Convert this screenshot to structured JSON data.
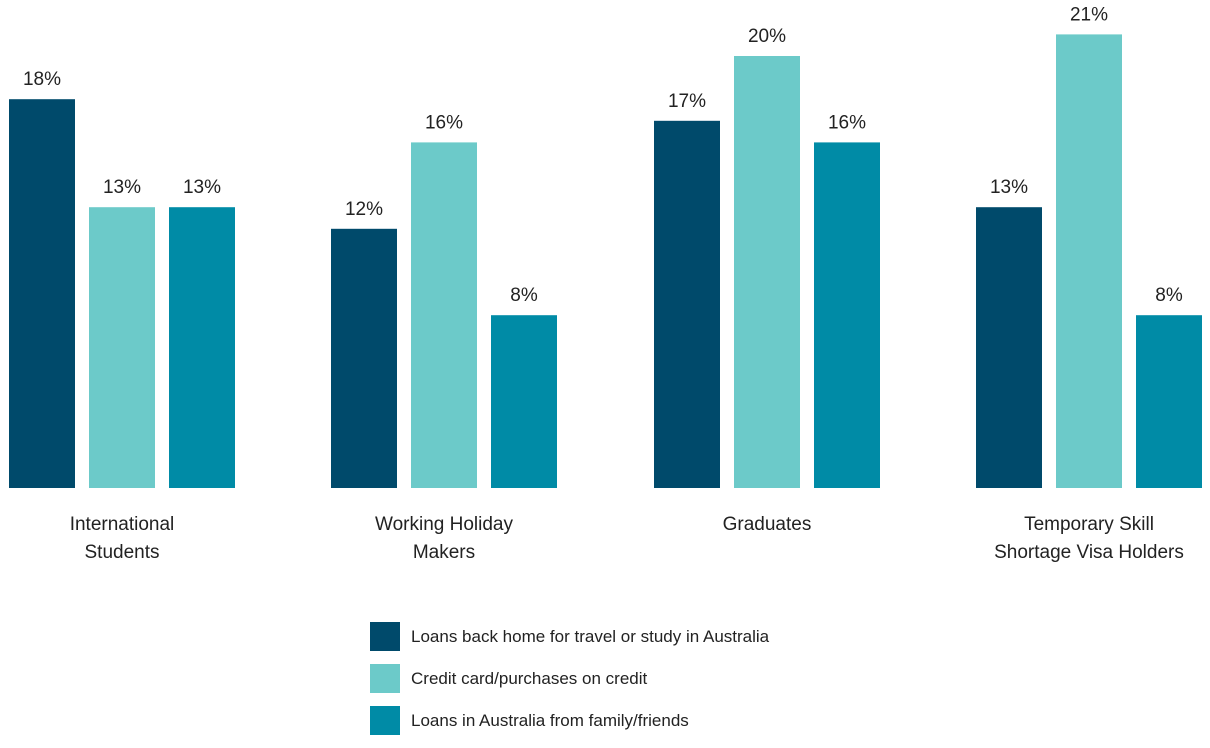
{
  "chart_data": {
    "type": "bar",
    "categories": [
      [
        "International",
        "Students"
      ],
      [
        "Working Holiday",
        "Makers"
      ],
      [
        "Graduates"
      ],
      [
        "Temporary Skill",
        "Shortage Visa Holders"
      ]
    ],
    "series": [
      {
        "name": "Loans back home for travel or study in Australia",
        "color": "#004a6b",
        "values": [
          18,
          12,
          17,
          13
        ]
      },
      {
        "name": "Credit card/purchases on credit",
        "color": "#6ccac9",
        "values": [
          13,
          16,
          20,
          21
        ]
      },
      {
        "name": "Loans in Australia from family/friends",
        "color": "#008ba6",
        "values": [
          13,
          8,
          16,
          8
        ]
      }
    ],
    "value_suffix": "%",
    "ylim": [
      0,
      23
    ],
    "grid": false,
    "legend_position": "bottom-center"
  }
}
